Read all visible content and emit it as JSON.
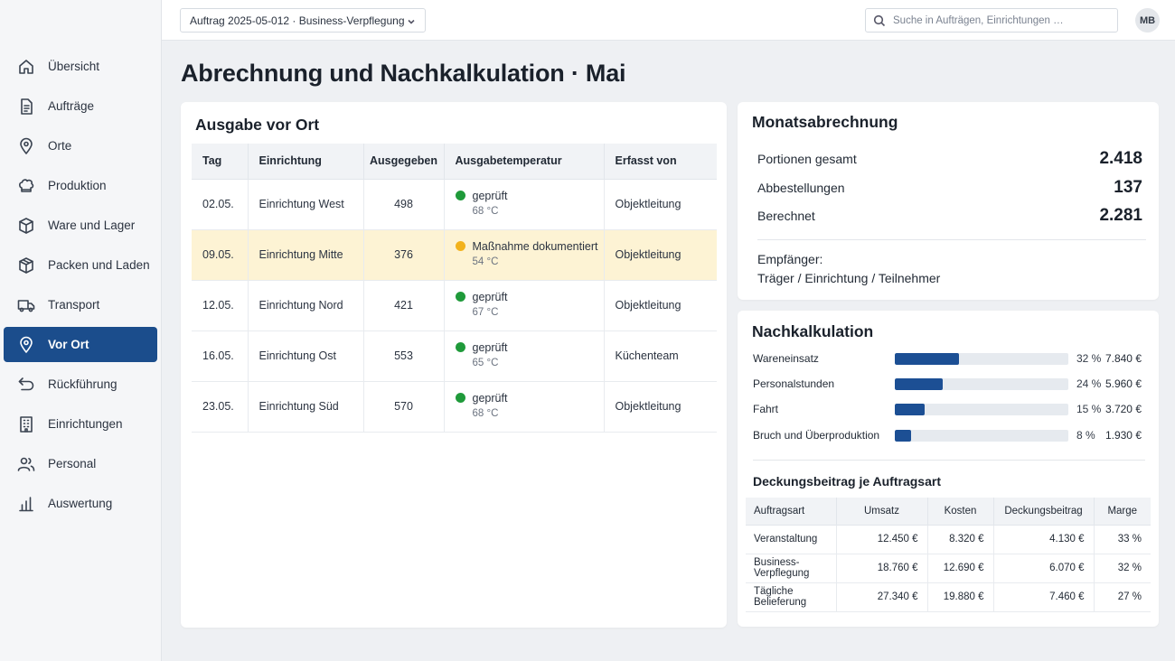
{
  "header": {
    "order_select": "Auftrag 2025-05-012 · Business-Verpflegung",
    "search_placeholder": "Suche in Aufträgen, Einrichtungen …",
    "avatar_initials": "MB"
  },
  "sidebar": {
    "items": [
      {
        "label": "Übersicht",
        "icon": "home-icon"
      },
      {
        "label": "Aufträge",
        "icon": "document-icon"
      },
      {
        "label": "Orte",
        "icon": "location-pin-icon"
      },
      {
        "label": "Produktion",
        "icon": "chef-hat-icon"
      },
      {
        "label": "Ware und Lager",
        "icon": "box-icon"
      },
      {
        "label": "Packen und Laden",
        "icon": "package-icon"
      },
      {
        "label": "Transport",
        "icon": "truck-icon"
      },
      {
        "label": "Vor Ort",
        "icon": "location-pin-icon",
        "active": true
      },
      {
        "label": "Rückführung",
        "icon": "return-arrow-icon"
      },
      {
        "label": "Einrichtungen",
        "icon": "building-icon"
      },
      {
        "label": "Personal",
        "icon": "people-icon"
      },
      {
        "label": "Auswertung",
        "icon": "bar-chart-icon"
      }
    ]
  },
  "page": {
    "title": "Abrechnung und Nachkalkulation · Mai"
  },
  "ausgabe": {
    "title": "Ausgabe vor Ort",
    "columns": [
      "Tag",
      "Einrichtung",
      "Ausgegeben",
      "Ausgabetemperatur",
      "Erfasst von"
    ],
    "rows": [
      {
        "tag": "02.05.",
        "einrichtung": "Einrichtung West",
        "ausgegeben": "498",
        "status": "geprüft",
        "temp": "68 °C",
        "erfasst": "Objektleitung",
        "status_color": "#1f9a3a",
        "highlight": false
      },
      {
        "tag": "09.05.",
        "einrichtung": "Einrichtung Mitte",
        "ausgegeben": "376",
        "status": "Maßnahme dokumentiert",
        "temp": "54 °C",
        "erfasst": "Objektleitung",
        "status_color": "#f2b21c",
        "highlight": true
      },
      {
        "tag": "12.05.",
        "einrichtung": "Einrichtung Nord",
        "ausgegeben": "421",
        "status": "geprüft",
        "temp": "67 °C",
        "erfasst": "Objektleitung",
        "status_color": "#1f9a3a",
        "highlight": false
      },
      {
        "tag": "16.05.",
        "einrichtung": "Einrichtung Ost",
        "ausgegeben": "553",
        "status": "geprüft",
        "temp": "65 °C",
        "erfasst": "Küchenteam",
        "status_color": "#1f9a3a",
        "highlight": false
      },
      {
        "tag": "23.05.",
        "einrichtung": "Einrichtung Süd",
        "ausgegeben": "570",
        "status": "geprüft",
        "temp": "68 °C",
        "erfasst": "Objektleitung",
        "status_color": "#1f9a3a",
        "highlight": false
      }
    ]
  },
  "monat": {
    "title": "Monatsabrechnung",
    "rows": [
      {
        "label": "Portionen gesamt",
        "value": "2.418"
      },
      {
        "label": "Abbestellungen",
        "value": "137"
      },
      {
        "label": "Berechnet",
        "value": "2.281"
      }
    ],
    "recipients_label": "Empfänger:",
    "recipients": "Träger / Einrichtung / Teilnehmer"
  },
  "nach": {
    "title": "Nachkalkulation",
    "costs": [
      {
        "label": "Wareneinsatz",
        "percent": 32,
        "pct_label": "32 %",
        "amount": "7.840 €"
      },
      {
        "label": "Personalstunden",
        "percent": 24,
        "pct_label": "24 %",
        "amount": "5.960 €"
      },
      {
        "label": "Fahrt",
        "percent": 15,
        "pct_label": "15 %",
        "amount": "3.720 €"
      },
      {
        "label": "Bruch und Überproduktion",
        "percent": 8,
        "pct_label": "8 %",
        "amount": "1.930 €"
      }
    ],
    "db_title": "Deckungsbeitrag je Auftragsart",
    "db_columns": [
      "Auftragsart",
      "Umsatz",
      "Kosten",
      "Deckungsbeitrag",
      "Marge"
    ],
    "db_rows": [
      {
        "art": "Veranstaltung",
        "umsatz": "12.450 €",
        "kosten": "8.320 €",
        "db": "4.130 €",
        "marge": "33 %"
      },
      {
        "art": "Business-Verpflegung",
        "umsatz": "18.760 €",
        "kosten": "12.690 €",
        "db": "6.070 €",
        "marge": "32 %"
      },
      {
        "art": "Tägliche Belieferung",
        "umsatz": "27.340 €",
        "kosten": "19.880 €",
        "db": "7.460 €",
        "marge": "27 %"
      }
    ]
  },
  "colors": {
    "accent": "#1b4d8c",
    "bar_fill": "#1c4f94",
    "ok": "#1f9a3a",
    "warn": "#f2b21c",
    "highlight_row": "#fdf3d4"
  }
}
